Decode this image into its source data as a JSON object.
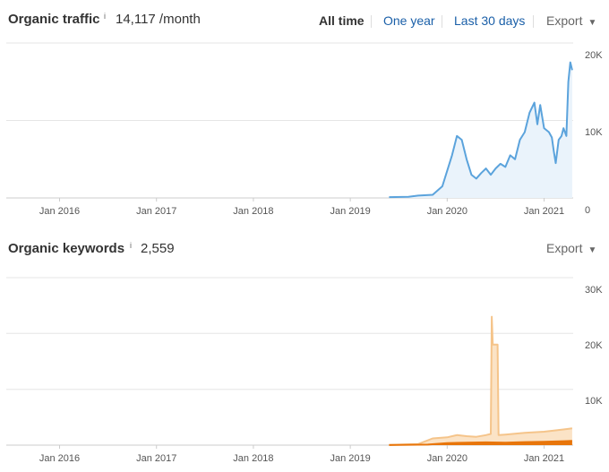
{
  "traffic": {
    "title": "Organic traffic",
    "info": "i",
    "value": "14,117 /month",
    "tabs": [
      {
        "label": "All time",
        "active": true
      },
      {
        "label": "One year",
        "active": false
      },
      {
        "label": "Last 30 days",
        "active": false
      }
    ],
    "export_label": "Export"
  },
  "keywords": {
    "title": "Organic keywords",
    "info": "i",
    "value": "2,559",
    "export_label": "Export"
  },
  "colors": {
    "traffic_line": "#5ba3dc",
    "traffic_fill": "#eaf3fb",
    "keywords_light": "#f5c48a",
    "keywords_light_fill": "#fbe3c6",
    "keywords_dark": "#e8750a",
    "grid": "#e5e5e5",
    "link": "#1a5fa8"
  },
  "chart_data": [
    {
      "type": "area",
      "x_ticks": [
        "Jan 2016",
        "Jan 2017",
        "Jan 2018",
        "Jan 2019",
        "Jan 2020",
        "Jan 2021"
      ],
      "y_ticks": [
        "20K",
        "10K",
        "0"
      ],
      "ylim": [
        0,
        20000
      ],
      "x_start": 2015.45,
      "x_end": 2021.3,
      "series": [
        {
          "values": [
            [
              2019.4,
              100
            ],
            [
              2019.6,
              150
            ],
            [
              2019.7,
              300
            ],
            [
              2019.85,
              400
            ],
            [
              2019.95,
              1500
            ],
            [
              2020.05,
              5500
            ],
            [
              2020.1,
              8000
            ],
            [
              2020.15,
              7500
            ],
            [
              2020.2,
              5000
            ],
            [
              2020.25,
              3000
            ],
            [
              2020.3,
              2500
            ],
            [
              2020.35,
              3200
            ],
            [
              2020.4,
              3800
            ],
            [
              2020.45,
              3000
            ],
            [
              2020.5,
              3800
            ],
            [
              2020.55,
              4400
            ],
            [
              2020.6,
              4000
            ],
            [
              2020.65,
              5500
            ],
            [
              2020.7,
              5000
            ],
            [
              2020.75,
              7500
            ],
            [
              2020.8,
              8500
            ],
            [
              2020.85,
              11000
            ],
            [
              2020.9,
              12300
            ],
            [
              2020.93,
              9500
            ],
            [
              2020.96,
              12000
            ],
            [
              2021.0,
              9000
            ],
            [
              2021.05,
              8500
            ],
            [
              2021.08,
              7800
            ],
            [
              2021.1,
              6000
            ],
            [
              2021.12,
              4500
            ],
            [
              2021.15,
              7500
            ],
            [
              2021.18,
              8000
            ],
            [
              2021.2,
              9000
            ],
            [
              2021.23,
              8000
            ],
            [
              2021.25,
              15000
            ],
            [
              2021.27,
              17500
            ],
            [
              2021.29,
              16500
            ]
          ]
        }
      ]
    },
    {
      "type": "area",
      "x_ticks": [
        "Jan 2016",
        "Jan 2017",
        "Jan 2018",
        "Jan 2019",
        "Jan 2020",
        "Jan 2021"
      ],
      "y_ticks": [
        "30K",
        "20K",
        "10K"
      ],
      "ylim": [
        0,
        30000
      ],
      "x_start": 2015.45,
      "x_end": 2021.3,
      "series": [
        {
          "values": [
            [
              2019.4,
              50
            ],
            [
              2019.7,
              200
            ],
            [
              2019.85,
              1200
            ],
            [
              2020.0,
              1400
            ],
            [
              2020.1,
              1800
            ],
            [
              2020.2,
              1600
            ],
            [
              2020.3,
              1500
            ],
            [
              2020.4,
              1800
            ],
            [
              2020.45,
              2000
            ],
            [
              2020.46,
              23000
            ],
            [
              2020.47,
              18000
            ],
            [
              2020.52,
              18000
            ],
            [
              2020.53,
              1800
            ],
            [
              2020.6,
              1900
            ],
            [
              2020.8,
              2200
            ],
            [
              2021.0,
              2400
            ],
            [
              2021.1,
              2600
            ],
            [
              2021.2,
              2800
            ],
            [
              2021.29,
              3000
            ]
          ]
        },
        {
          "values": [
            [
              2019.4,
              20
            ],
            [
              2019.8,
              100
            ],
            [
              2020.0,
              350
            ],
            [
              2020.2,
              450
            ],
            [
              2020.4,
              500
            ],
            [
              2020.6,
              450
            ],
            [
              2020.8,
              550
            ],
            [
              2021.0,
              600
            ],
            [
              2021.2,
              700
            ],
            [
              2021.29,
              750
            ]
          ]
        }
      ]
    }
  ]
}
